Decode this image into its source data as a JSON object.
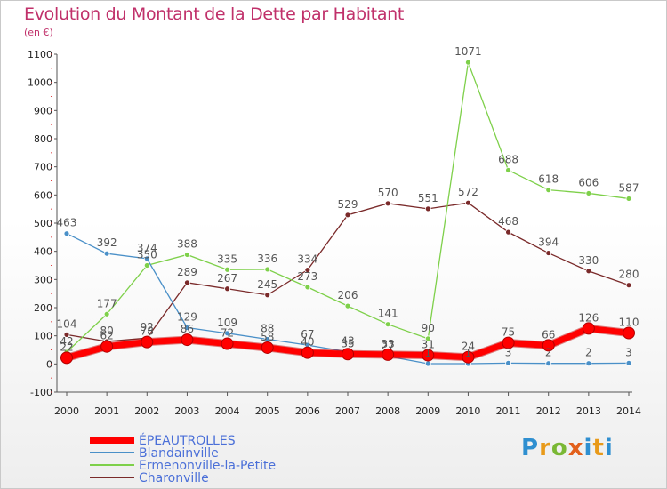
{
  "title": "Evolution du Montant de la Dette par Habitant",
  "subtitle": "(en €)",
  "logo_text": "Proxiti",
  "chart_data": {
    "type": "line",
    "x": [
      "2000",
      "2001",
      "2002",
      "2003",
      "2004",
      "2005",
      "2006",
      "2007",
      "2008",
      "2009",
      "2010",
      "2011",
      "2012",
      "2013",
      "2014"
    ],
    "ylim": [
      -100,
      1100
    ],
    "yticks": [
      -100,
      0,
      100,
      200,
      300,
      400,
      500,
      600,
      700,
      800,
      900,
      1000,
      1100
    ],
    "grid": false,
    "legend_position": "bottom-left",
    "series": [
      {
        "name": "ÉPEAUTROLLES",
        "color": "#ff0000",
        "values": [
          22,
          62,
          78,
          86,
          72,
          58,
          40,
          35,
          33,
          31,
          24,
          75,
          66,
          126,
          110
        ]
      },
      {
        "name": "Blandainville",
        "color": "#4a90c8",
        "values": [
          463,
          392,
          374,
          129,
          109,
          88,
          67,
          43,
          27,
          1,
          1,
          3,
          2,
          2,
          3
        ]
      },
      {
        "name": "Ermenonville-la-Petite",
        "color": "#7ed04a",
        "values": [
          42,
          177,
          350,
          388,
          335,
          336,
          273,
          206,
          141,
          90,
          1071,
          688,
          618,
          606,
          587
        ]
      },
      {
        "name": "Charonville",
        "color": "#7a2a2a",
        "values": [
          104,
          80,
          92,
          289,
          267,
          245,
          334,
          529,
          570,
          551,
          572,
          468,
          394,
          330,
          280
        ]
      }
    ]
  }
}
